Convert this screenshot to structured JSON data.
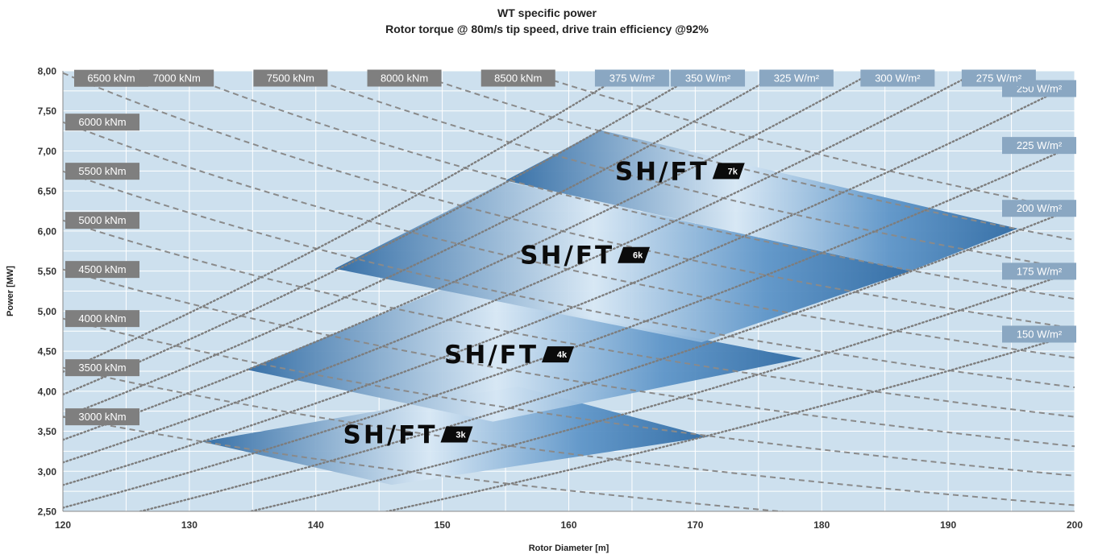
{
  "title": "WT specific power",
  "subtitle": "Rotor torque @ 80m/s tip speed, drive train efficiency @92%",
  "colors": {
    "plot_background": "#cde0ee",
    "grid": "#ffffff",
    "torque_label_bg": "#7f7f7f",
    "power_density_label_bg": "#8aa7c2",
    "product_blue_dark": "#2f6aa3",
    "product_blue_light": "#d8e8f5"
  },
  "chart_data": {
    "type": "line",
    "xlabel": "Rotor Diameter [m]",
    "ylabel": "Power [MW]",
    "xlim": [
      120,
      200
    ],
    "ylim": [
      2.5,
      8.0
    ],
    "x_ticks": [
      "120",
      "130",
      "140",
      "150",
      "160",
      "170",
      "180",
      "190",
      "200"
    ],
    "y_ticks": [
      "2,50",
      "3,00",
      "3,50",
      "4,00",
      "4,50",
      "5,00",
      "5,50",
      "6,00",
      "6,50",
      "7,00",
      "7,50",
      "8,00"
    ],
    "grid": true,
    "legend": "none",
    "tip_speed_m_per_s": 80,
    "drivetrain_efficiency": 0.92,
    "torque_series": [
      {
        "label": "3000 kNm",
        "torque_knm": 3000,
        "label_x": 120
      },
      {
        "label": "3500 kNm",
        "torque_knm": 3500,
        "label_x": 120
      },
      {
        "label": "4000 kNm",
        "torque_knm": 4000,
        "label_x": 120
      },
      {
        "label": "4500 kNm",
        "torque_knm": 4500,
        "label_x": 120
      },
      {
        "label": "5000 kNm",
        "torque_knm": 5000,
        "label_x": 120
      },
      {
        "label": "5500 kNm",
        "torque_knm": 5500,
        "label_x": 120
      },
      {
        "label": "6000 kNm",
        "torque_knm": 6000,
        "label_x": 120
      },
      {
        "label": "6500 kNm",
        "torque_knm": 6500,
        "label_x": 121
      },
      {
        "label": "7000 kNm",
        "torque_knm": 7000,
        "label_x": 129
      },
      {
        "label": "7500 kNm",
        "torque_knm": 7500,
        "label_x": 138
      },
      {
        "label": "8000 kNm",
        "torque_knm": 8000,
        "label_x": 147
      },
      {
        "label": "8500 kNm",
        "torque_knm": 8500,
        "label_x": 156
      }
    ],
    "power_density_series": [
      {
        "label": "150 W/m²",
        "w_per_m2": 150,
        "label_x": 200
      },
      {
        "label": "175 W/m²",
        "w_per_m2": 175,
        "label_x": 200
      },
      {
        "label": "200 W/m²",
        "w_per_m2": 200,
        "label_x": 200
      },
      {
        "label": "225 W/m²",
        "w_per_m2": 225,
        "label_x": 200
      },
      {
        "label": "250 W/m²",
        "w_per_m2": 250,
        "label_x": 200
      },
      {
        "label": "275 W/m²",
        "w_per_m2": 275,
        "label_x": 194
      },
      {
        "label": "300 W/m²",
        "w_per_m2": 300,
        "label_x": 186
      },
      {
        "label": "325 W/m²",
        "w_per_m2": 325,
        "label_x": 178
      },
      {
        "label": "350 W/m²",
        "w_per_m2": 350,
        "label_x": 171
      },
      {
        "label": "375 W/m²",
        "w_per_m2": 375,
        "label_x": 165
      }
    ],
    "products": [
      {
        "name": "SH/FT",
        "badge": "3k",
        "polygon": [
          [
            131,
            3.37
          ],
          [
            156,
            4.06
          ],
          [
            171,
            3.43
          ],
          [
            146,
            2.83
          ]
        ],
        "label_at": [
          150.5,
          3.46
        ]
      },
      {
        "name": "SH/FT",
        "badge": "4k",
        "polygon": [
          [
            134.5,
            4.27
          ],
          [
            150,
            5.27
          ],
          [
            178.5,
            4.41
          ],
          [
            154,
            3.62
          ]
        ],
        "label_at": [
          158.5,
          4.46
        ]
      },
      {
        "name": "SH/FT",
        "badge": "6k",
        "polygon": [
          [
            141.5,
            5.53
          ],
          [
            155,
            6.62
          ],
          [
            187,
            5.5
          ],
          [
            170.5,
            4.61
          ]
        ],
        "label_at": [
          164.5,
          5.7
        ]
      },
      {
        "name": "SH/FT",
        "badge": "7k",
        "polygon": [
          [
            155,
            6.63
          ],
          [
            162.5,
            7.26
          ],
          [
            195.5,
            6.03
          ],
          [
            187,
            5.5
          ]
        ],
        "label_at": [
          172,
          6.75
        ]
      }
    ]
  }
}
